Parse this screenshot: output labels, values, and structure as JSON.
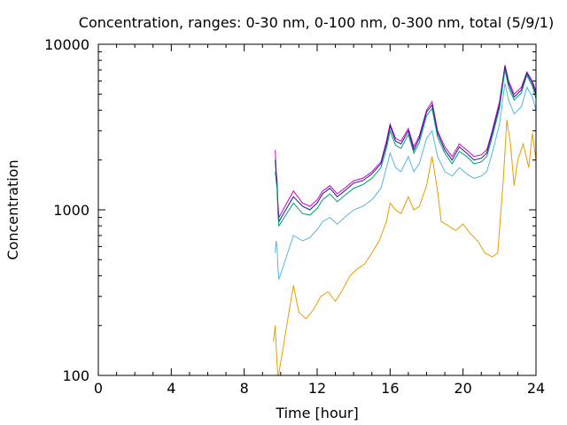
{
  "chart_data": {
    "type": "line",
    "title": "Concentration, ranges: 0-30 nm, 0-100 nm, 0-300 nm, total (5/9/1)",
    "xlabel": "Time [hour]",
    "ylabel": "Concentration",
    "xlim": [
      0,
      24
    ],
    "ylim": [
      100,
      10000
    ],
    "yscale": "log",
    "grid": false,
    "x_ticks": [
      0,
      4,
      8,
      12,
      16,
      20,
      24
    ],
    "x_tick_labels": [
      "0",
      "4",
      "8",
      "12",
      "16",
      "20",
      "24"
    ],
    "y_ticks": [
      100,
      1000,
      10000
    ],
    "y_tick_labels": [
      "100",
      "1000",
      "10000"
    ],
    "series": [
      {
        "color": "#cc00cc",
        "x": [
          9.7,
          9.75,
          9.8,
          9.85,
          9.9,
          10.7,
          11.2,
          11.6,
          12.0,
          12.3,
          12.7,
          13.1,
          13.5,
          14.0,
          14.5,
          15.0,
          15.5,
          15.8,
          16.0,
          16.3,
          16.6,
          17.0,
          17.3,
          17.6,
          18.0,
          18.3,
          18.6,
          19.0,
          19.4,
          19.8,
          20.2,
          20.6,
          21.0,
          21.3,
          21.6,
          22.0,
          22.3,
          22.5,
          22.8,
          23.2,
          23.5,
          23.8,
          24.0
        ],
        "y": [
          2300,
          1700,
          1500,
          1100,
          900,
          1300,
          1100,
          1050,
          1150,
          1300,
          1400,
          1250,
          1350,
          1500,
          1550,
          1700,
          1950,
          2600,
          3300,
          2700,
          2600,
          3100,
          2400,
          2800,
          4000,
          4500,
          3000,
          2400,
          2100,
          2500,
          2300,
          2100,
          2150,
          2300,
          3000,
          4500,
          7500,
          6000,
          5000,
          5500,
          6800,
          6000,
          5200
        ]
      },
      {
        "color": "#1a1a8c",
        "x": [
          9.7,
          9.75,
          9.8,
          9.85,
          9.9,
          10.7,
          11.2,
          11.6,
          12.0,
          12.3,
          12.7,
          13.1,
          13.5,
          14.0,
          14.5,
          15.0,
          15.5,
          15.8,
          16.0,
          16.3,
          16.6,
          17.0,
          17.3,
          17.6,
          18.0,
          18.3,
          18.6,
          19.0,
          19.4,
          19.8,
          20.2,
          20.6,
          21.0,
          21.3,
          21.6,
          22.0,
          22.3,
          22.5,
          22.8,
          23.2,
          23.5,
          23.8,
          24.0
        ],
        "y": [
          2000,
          1650,
          1450,
          1050,
          850,
          1200,
          1050,
          1000,
          1100,
          1250,
          1350,
          1200,
          1300,
          1450,
          1500,
          1650,
          1900,
          2500,
          3200,
          2600,
          2500,
          3000,
          2300,
          2700,
          3900,
          4300,
          2900,
          2300,
          2000,
          2400,
          2200,
          2000,
          2050,
          2200,
          2900,
          4300,
          7300,
          5800,
          4800,
          5300,
          6700,
          5800,
          5000
        ]
      },
      {
        "color": "#009e73",
        "x": [
          9.7,
          9.75,
          9.8,
          9.85,
          9.9,
          10.7,
          11.2,
          11.6,
          12.0,
          12.3,
          12.7,
          13.1,
          13.5,
          14.0,
          14.5,
          15.0,
          15.5,
          15.8,
          16.0,
          16.3,
          16.6,
          17.0,
          17.3,
          17.6,
          18.0,
          18.3,
          18.6,
          19.0,
          19.4,
          19.8,
          20.2,
          20.6,
          21.0,
          21.3,
          21.6,
          22.0,
          22.3,
          22.5,
          22.8,
          23.2,
          23.5,
          23.8,
          24.0
        ],
        "y": [
          1700,
          1500,
          1350,
          950,
          800,
          1100,
          950,
          930,
          1020,
          1150,
          1250,
          1120,
          1220,
          1350,
          1420,
          1550,
          1800,
          2350,
          3000,
          2450,
          2350,
          2850,
          2200,
          2550,
          3700,
          4100,
          2750,
          2200,
          1900,
          2250,
          2100,
          1900,
          1950,
          2100,
          2750,
          4100,
          7000,
          5500,
          4600,
          5100,
          6500,
          5600,
          4700
        ]
      },
      {
        "color": "#56b4e9",
        "x": [
          9.7,
          9.75,
          9.8,
          9.85,
          9.9,
          10.7,
          11.2,
          11.6,
          12.0,
          12.3,
          12.7,
          13.1,
          13.5,
          14.0,
          14.5,
          15.0,
          15.5,
          15.8,
          16.0,
          16.3,
          16.6,
          17.0,
          17.3,
          17.6,
          18.0,
          18.3,
          18.6,
          19.0,
          19.4,
          19.8,
          20.2,
          20.6,
          21.0,
          21.3,
          21.6,
          22.0,
          22.3,
          22.5,
          22.8,
          23.2,
          23.5,
          23.8,
          24.0
        ],
        "y": [
          550,
          650,
          600,
          450,
          380,
          700,
          650,
          680,
          760,
          850,
          900,
          820,
          900,
          1000,
          1050,
          1150,
          1350,
          1800,
          2200,
          1800,
          1700,
          2100,
          1700,
          1900,
          2700,
          3000,
          2100,
          1700,
          1600,
          1800,
          1650,
          1550,
          1600,
          1700,
          2200,
          3300,
          5800,
          4600,
          3800,
          4200,
          5500,
          4800,
          4000
        ]
      },
      {
        "color": "#e69f00",
        "x": [
          9.6,
          9.7,
          9.75,
          9.8,
          9.85,
          10.7,
          11.0,
          11.4,
          11.8,
          12.2,
          12.6,
          13.0,
          13.4,
          13.8,
          14.2,
          14.6,
          15.0,
          15.4,
          15.8,
          16.0,
          16.3,
          16.6,
          17.0,
          17.3,
          17.6,
          18.0,
          18.3,
          18.6,
          18.8,
          19.2,
          19.6,
          20.0,
          20.4,
          20.8,
          21.2,
          21.6,
          21.9,
          22.2,
          22.4,
          22.6,
          22.8,
          23.0,
          23.3,
          23.6,
          23.8,
          24.0
        ],
        "y": [
          160,
          200,
          150,
          120,
          95,
          350,
          240,
          220,
          250,
          300,
          320,
          280,
          330,
          400,
          440,
          470,
          550,
          650,
          850,
          1100,
          1000,
          950,
          1200,
          1000,
          1050,
          1400,
          2100,
          1300,
          850,
          800,
          750,
          820,
          720,
          650,
          550,
          520,
          550,
          1500,
          3500,
          2500,
          1400,
          2000,
          2500,
          1800,
          2900,
          2000
        ]
      }
    ]
  }
}
